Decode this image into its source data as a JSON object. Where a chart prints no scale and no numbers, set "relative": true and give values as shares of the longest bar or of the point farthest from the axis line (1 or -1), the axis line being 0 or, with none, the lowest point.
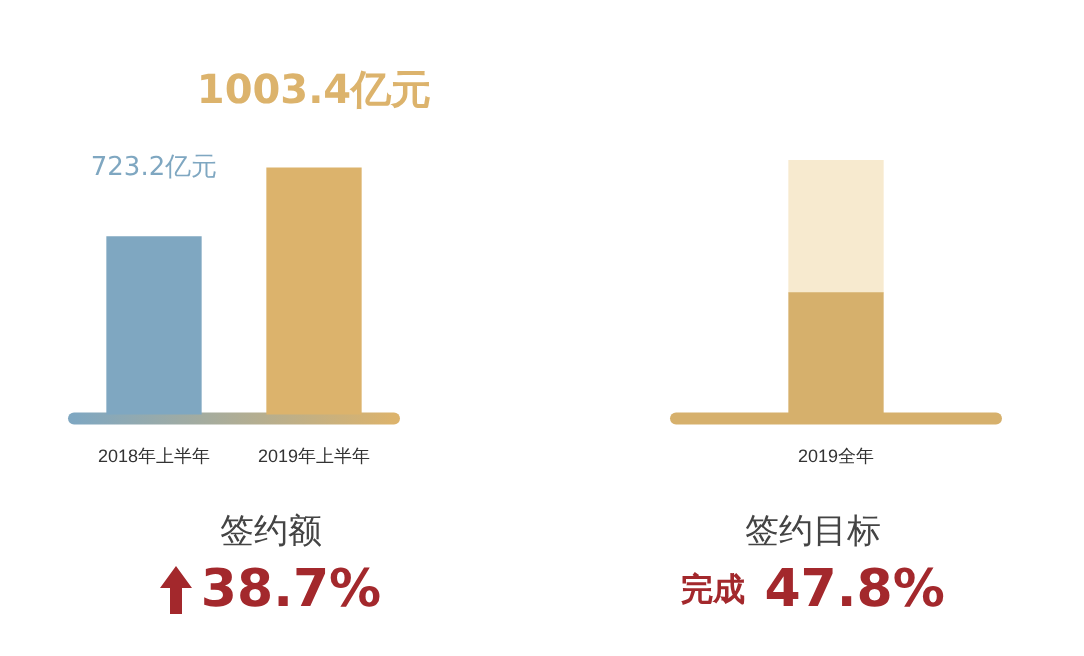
{
  "chart_data": [
    {
      "type": "bar",
      "categories": [
        "2018年上半年",
        "2019年上半年"
      ],
      "values": [
        723.2,
        1003.4
      ],
      "colors": [
        "#7fa7c1",
        "#dcb36c"
      ],
      "value_labels": [
        "723.2亿元",
        "1003.4亿元"
      ],
      "tick_labels": "x",
      "annotations": [
        "签约额",
        "38.7%"
      ]
    },
    {
      "type": "bar",
      "stacked": true,
      "relative": true,
      "categories": [
        "2019全年"
      ],
      "series": [
        {
          "color": "#d6b06c",
          "values": [
            0.478
          ]
        },
        {
          "color": "#f7eacf",
          "values": [
            0.522
          ]
        }
      ],
      "annotations": [
        "签约目标",
        "完成 47.8%"
      ]
    }
  ]
}
